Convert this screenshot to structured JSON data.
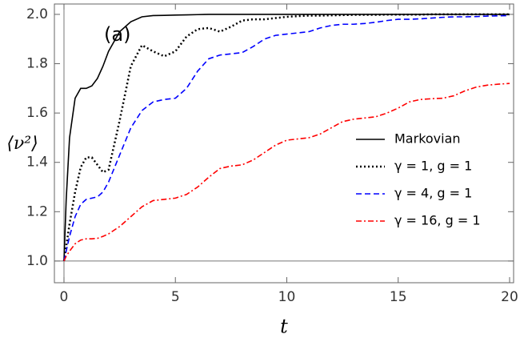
{
  "chart_data": {
    "type": "line",
    "annotation": "(a)",
    "x_label": "t",
    "y_label": "⟨ν²⟩",
    "x": [
      0,
      0.1,
      0.25,
      0.5,
      0.75,
      1,
      1.25,
      1.5,
      1.75,
      2,
      2.5,
      3,
      3.5,
      4,
      4.5,
      5,
      5.5,
      6,
      6.5,
      7,
      7.5,
      8,
      8.5,
      9,
      9.5,
      10,
      10.5,
      11,
      11.5,
      12,
      12.5,
      13,
      13.5,
      14,
      14.5,
      15,
      15.5,
      16,
      16.5,
      17,
      17.5,
      18,
      18.5,
      19,
      19.5,
      20
    ],
    "series": [
      {
        "name": "Markovian",
        "color": "#000000",
        "linestyle": "solid",
        "values": [
          1.0,
          1.25,
          1.5,
          1.66,
          1.7,
          1.7,
          1.71,
          1.74,
          1.79,
          1.85,
          1.93,
          1.97,
          1.99,
          1.995,
          1.996,
          1.997,
          1.998,
          1.999,
          2.0,
          2.0,
          2.0,
          2.0,
          2.0,
          2.0,
          2.0,
          2.0,
          2.0,
          2.0,
          2.0,
          2.0,
          2.0,
          2.0,
          2.0,
          2.0,
          2.0,
          2.0,
          2.0,
          2.0,
          2.0,
          2.0,
          2.0,
          2.0,
          2.0,
          2.0,
          2.0,
          2.0
        ]
      },
      {
        "name": "γ = 1, g = 1",
        "color": "#000000",
        "linestyle": "dotted",
        "values": [
          1.0,
          1.06,
          1.15,
          1.28,
          1.38,
          1.42,
          1.42,
          1.39,
          1.36,
          1.37,
          1.57,
          1.79,
          1.875,
          1.85,
          1.83,
          1.85,
          1.91,
          1.94,
          1.945,
          1.93,
          1.95,
          1.975,
          1.98,
          1.98,
          1.985,
          1.99,
          1.993,
          1.995,
          1.995,
          1.996,
          1.997,
          1.998,
          1.998,
          1.998,
          1.999,
          1.999,
          1.999,
          1.999,
          2.0,
          2.0,
          2.0,
          2.0,
          2.0,
          2.0,
          2.0,
          2.0
        ]
      },
      {
        "name": "γ = 4, g = 1",
        "color": "#0000ff",
        "linestyle": "dashed",
        "values": [
          1.0,
          1.04,
          1.1,
          1.18,
          1.23,
          1.25,
          1.255,
          1.26,
          1.28,
          1.32,
          1.43,
          1.54,
          1.61,
          1.645,
          1.655,
          1.66,
          1.7,
          1.77,
          1.82,
          1.835,
          1.84,
          1.845,
          1.87,
          1.9,
          1.915,
          1.92,
          1.925,
          1.93,
          1.945,
          1.955,
          1.96,
          1.96,
          1.963,
          1.968,
          1.975,
          1.98,
          1.98,
          1.982,
          1.985,
          1.988,
          1.99,
          1.99,
          1.991,
          1.993,
          1.994,
          1.995
        ]
      },
      {
        "name": "γ = 16, g = 1",
        "color": "#ff0000",
        "linestyle": "dashdot",
        "values": [
          1.0,
          1.02,
          1.04,
          1.07,
          1.085,
          1.09,
          1.09,
          1.092,
          1.1,
          1.11,
          1.14,
          1.18,
          1.22,
          1.245,
          1.25,
          1.255,
          1.27,
          1.3,
          1.34,
          1.375,
          1.385,
          1.39,
          1.41,
          1.44,
          1.47,
          1.49,
          1.495,
          1.5,
          1.515,
          1.54,
          1.565,
          1.575,
          1.58,
          1.585,
          1.6,
          1.62,
          1.645,
          1.655,
          1.658,
          1.66,
          1.67,
          1.69,
          1.705,
          1.713,
          1.717,
          1.72
        ]
      }
    ],
    "xlim": [
      -0.43,
      20.18
    ],
    "ylim": [
      0.912,
      2.042
    ],
    "xticks": [
      0,
      5,
      10,
      15,
      20
    ],
    "yticks": [
      {
        "value": 1,
        "label": "1.0"
      },
      {
        "value": 1.2,
        "label": "1.2"
      },
      {
        "value": 1.4,
        "label": "1.4"
      },
      {
        "value": 1.6,
        "label": "1.6"
      },
      {
        "value": 1.8,
        "label": "1.8"
      },
      {
        "value": 2,
        "label": "2.0"
      }
    ],
    "legend": "center right"
  }
}
